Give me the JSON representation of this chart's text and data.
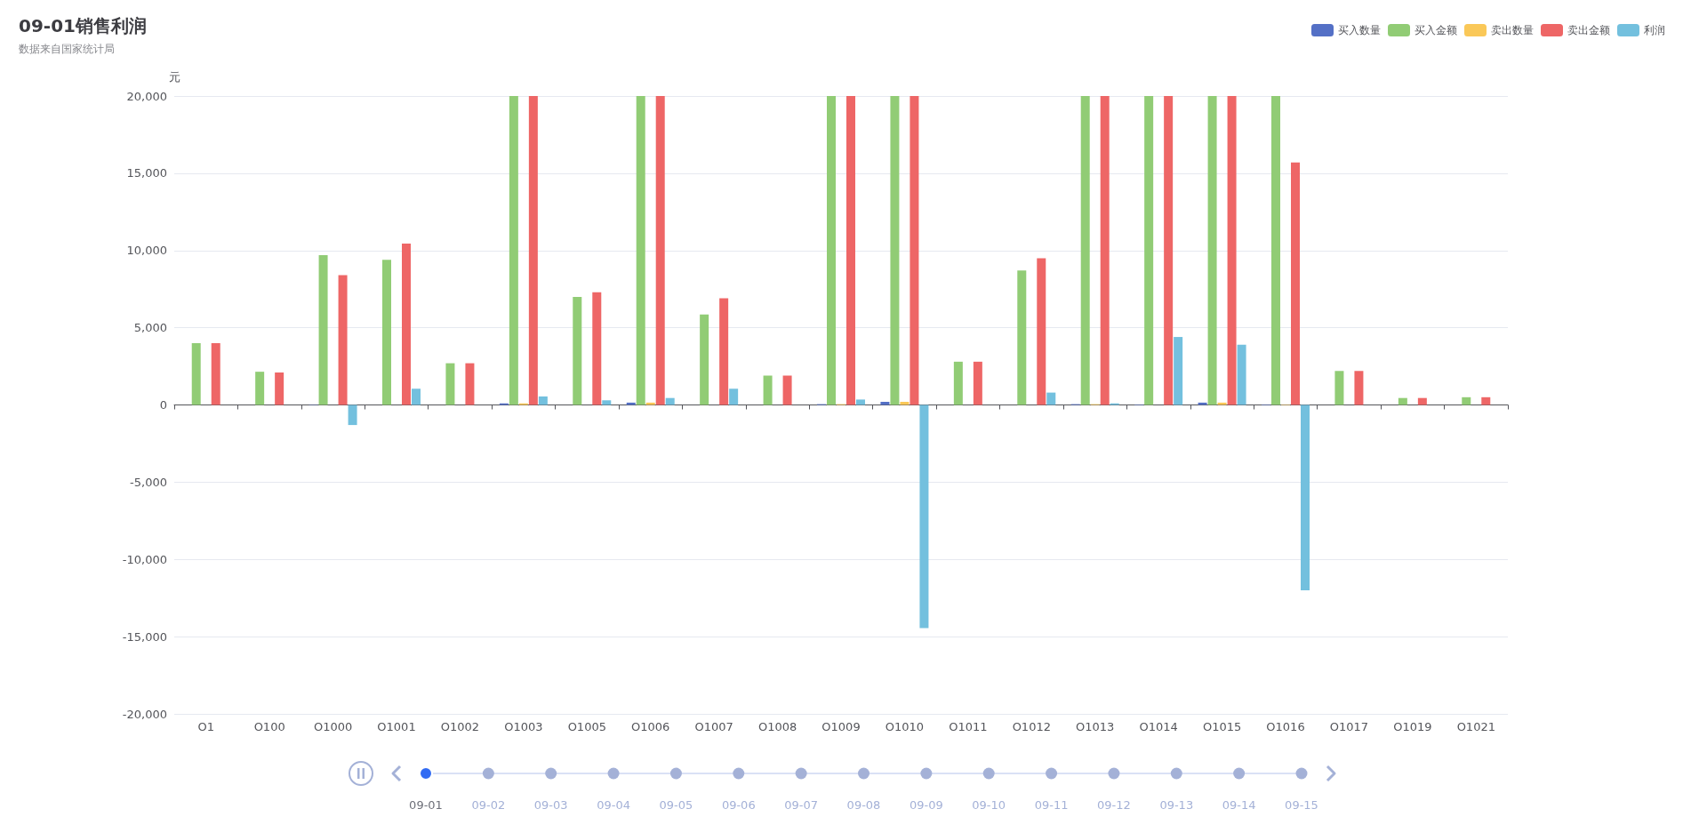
{
  "chart_data": {
    "type": "bar",
    "title": "09-01销售利润",
    "subtitle": "数据来自国家统计局",
    "ylabel": "元",
    "categories": [
      "O1",
      "O100",
      "O1000",
      "O1001",
      "O1002",
      "O1003",
      "O1005",
      "O1006",
      "O1007",
      "O1008",
      "O1009",
      "O1010",
      "O1011",
      "O1012",
      "O1013",
      "O1014",
      "O1015",
      "O1016",
      "O1017",
      "O1019",
      "O1021"
    ],
    "series": [
      {
        "name": "买入数量",
        "color": "#5470c6",
        "values": [
          0,
          0,
          20,
          0,
          0,
          100,
          0,
          150,
          0,
          0,
          50,
          200,
          0,
          0,
          50,
          30,
          150,
          30,
          0,
          0,
          0
        ]
      },
      {
        "name": "买入金额",
        "color": "#91cc75",
        "values": [
          4000,
          2150,
          9700,
          9400,
          2700,
          20000,
          7000,
          20000,
          5850,
          1900,
          20000,
          20000,
          2800,
          8700,
          20000,
          20000,
          20000,
          20000,
          2200,
          450,
          500
        ]
      },
      {
        "name": "卖出数量",
        "color": "#fac858",
        "values": [
          0,
          0,
          0,
          0,
          0,
          100,
          0,
          150,
          0,
          0,
          50,
          200,
          0,
          0,
          50,
          0,
          150,
          30,
          0,
          0,
          0
        ]
      },
      {
        "name": "卖出金额",
        "color": "#ee6666",
        "values": [
          4000,
          2100,
          8400,
          10450,
          2700,
          20000,
          7300,
          20000,
          6900,
          1900,
          20000,
          20000,
          2800,
          9500,
          20000,
          20000,
          20000,
          15700,
          2200,
          450,
          500
        ]
      },
      {
        "name": "利润",
        "color": "#73c0de",
        "values": [
          0,
          0,
          -1300,
          1050,
          0,
          550,
          300,
          450,
          1050,
          0,
          350,
          -14450,
          0,
          800,
          100,
          4400,
          3900,
          -12000,
          0,
          0,
          0
        ]
      }
    ],
    "ylim": [
      -20000,
      20000
    ],
    "yticks": [
      {
        "value": -20000,
        "label": "-20,000"
      },
      {
        "value": -15000,
        "label": "-15,000"
      },
      {
        "value": -10000,
        "label": "-10,000"
      },
      {
        "value": -5000,
        "label": "-5,000"
      },
      0,
      {
        "value": 5000,
        "label": "5,000"
      },
      {
        "value": 10000,
        "label": "10,000"
      },
      {
        "value": 15000,
        "label": "15,000"
      },
      {
        "value": 20000,
        "label": "20,000"
      }
    ],
    "grid": "y",
    "legend": "top right",
    "annotations": [
      "09-01",
      "09-02",
      "09-03",
      "09-04",
      "09-05",
      "09-06",
      "09-07",
      "09-08",
      "09-09",
      "09-10",
      "09-11",
      "09-12",
      "09-13",
      "09-14",
      "09-15"
    ]
  }
}
